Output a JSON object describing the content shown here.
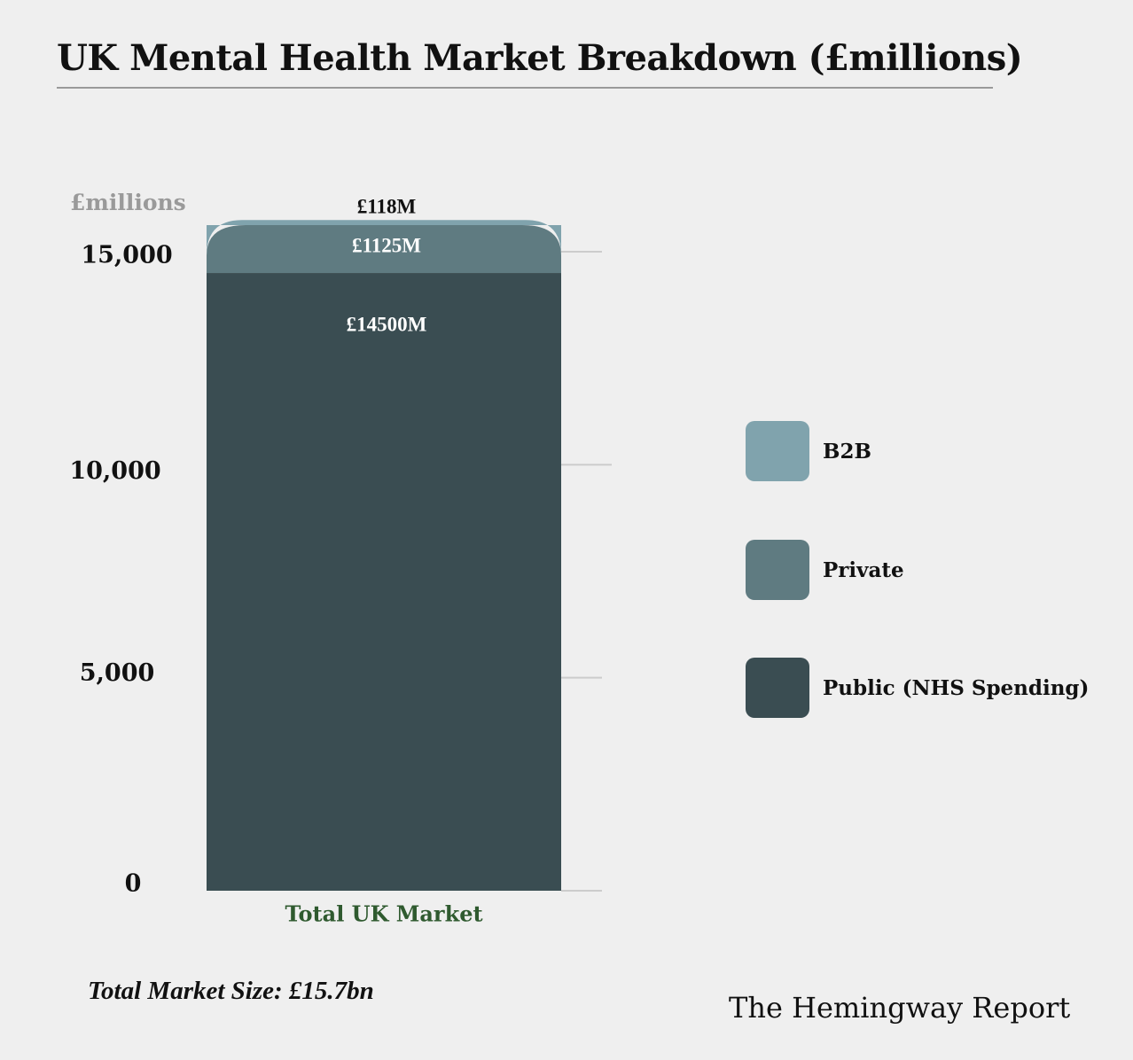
{
  "title": "UK Mental Health Market Breakdown (£millions)",
  "footer_note": "Total Market Size: £15.7bn",
  "brand": "The Hemingway Report",
  "colors": {
    "b2b": "#80a3ad",
    "private": "#5f7b81",
    "public": "#3a4d52",
    "grid": "#cccccc",
    "axis_unit": "#9a9a9a",
    "category_label": "#2f5a2f"
  },
  "chart_data": {
    "type": "bar",
    "stacked": true,
    "categories": [
      "Total UK Market"
    ],
    "series": [
      {
        "name": "Public (NHS Spending)",
        "values": [
          14500
        ],
        "data_label": "£14500M",
        "color": "#3a4d52"
      },
      {
        "name": "Private",
        "values": [
          1125
        ],
        "data_label": "£1125M",
        "color": "#5f7b81"
      },
      {
        "name": "B2B",
        "values": [
          118
        ],
        "data_label": "£118M",
        "color": "#80a3ad"
      }
    ],
    "ylabel": "£millions",
    "yticks": [
      0,
      5000,
      10000,
      15000
    ],
    "ytick_labels": [
      "0",
      "5,000",
      "10,000",
      "15,000"
    ],
    "ylim": [
      0,
      15743
    ],
    "grid": true,
    "legend_position": "right",
    "legend": [
      "B2B",
      "Private",
      "Public (NHS Spending)"
    ]
  }
}
